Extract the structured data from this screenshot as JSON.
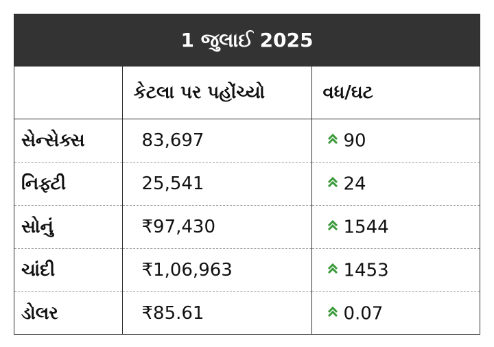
{
  "title": "1 જુલાઈ 2025",
  "colors": {
    "header_bg": "#333333",
    "up_arrow": "#3a9a3a"
  },
  "table": {
    "headers": [
      "",
      "કેટલા પર પહોંચ્યો",
      "વધ/ઘટ"
    ],
    "rows": [
      {
        "name": "સેન્સેક્સ",
        "value": "83,697",
        "change": "90",
        "direction_icon": "double-chevron-up-icon"
      },
      {
        "name": "નિફ્ટી",
        "value": "25,541",
        "change": "24",
        "direction_icon": "double-chevron-up-icon"
      },
      {
        "name": "સોનું",
        "value": "₹97,430",
        "change": "1544",
        "direction_icon": "double-chevron-up-icon"
      },
      {
        "name": "ચાંદી",
        "value": "₹1,06,963",
        "change": "1453",
        "direction_icon": "double-chevron-up-icon"
      },
      {
        "name": "ડોલર",
        "value": "₹85.61",
        "change": "0.07",
        "direction_icon": "double-chevron-up-icon"
      }
    ]
  }
}
